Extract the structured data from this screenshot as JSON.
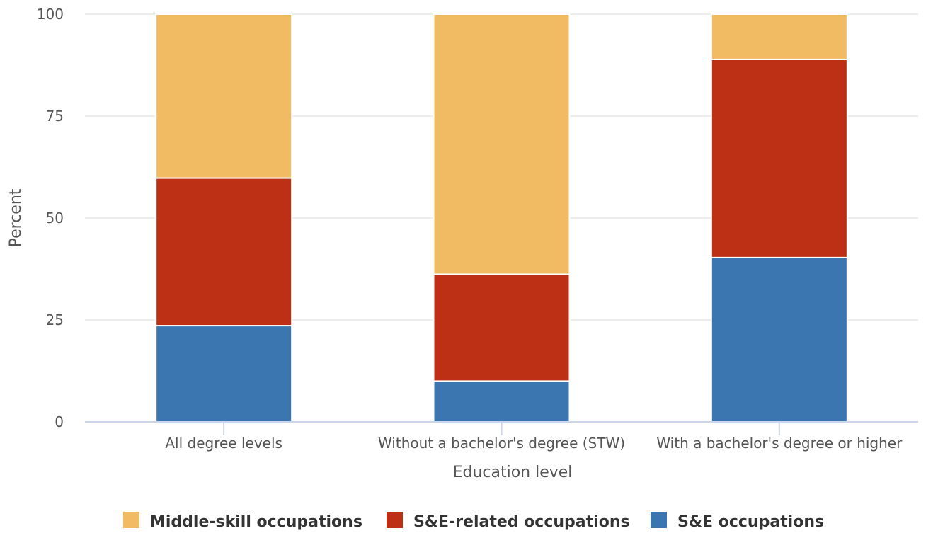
{
  "chart_data": {
    "type": "bar",
    "stacked": true,
    "categories": [
      "All degree levels",
      "Without a bachelor's degree (STW)",
      "With a bachelor's degree or higher"
    ],
    "series": [
      {
        "name": "S&E occupations",
        "color": "#3b76b0",
        "values": [
          23.6,
          10.0,
          40.3
        ]
      },
      {
        "name": "S&E-related occupations",
        "color": "#bd3015",
        "values": [
          36.2,
          26.2,
          48.6
        ]
      },
      {
        "name": "Middle-skill occupations",
        "color": "#f0bb62",
        "values": [
          40.2,
          63.8,
          11.1
        ]
      }
    ],
    "legend_order": [
      "Middle-skill occupations",
      "S&E-related occupations",
      "S&E occupations"
    ],
    "xlabel": "Education level",
    "ylabel": "Percent",
    "ylim": [
      0,
      100
    ],
    "yticks": [
      "0",
      "25",
      "50",
      "75",
      "100"
    ],
    "grid": true,
    "legend_position": "bottom"
  }
}
